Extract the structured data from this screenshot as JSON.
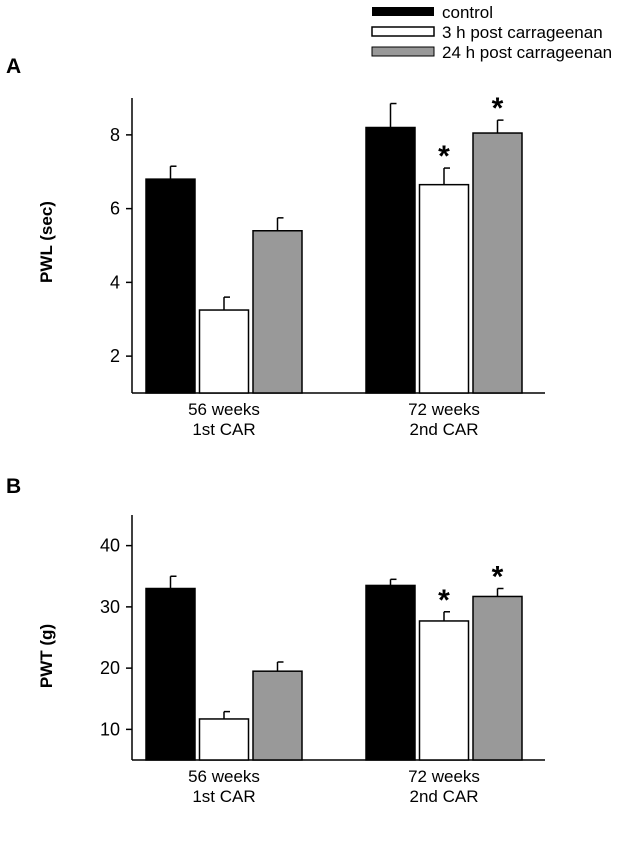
{
  "legend": [
    {
      "label": "control",
      "color": "#000000"
    },
    {
      "label": "3 h post carrageenan",
      "color": "#ffffff"
    },
    {
      "label": "24 h post carrageenan",
      "color": "#999999"
    }
  ],
  "chart_data": [
    {
      "panel": "A",
      "type": "bar",
      "ylabel": "PWL (sec)",
      "ylim": [
        1,
        9
      ],
      "yticks": [
        2,
        4,
        6,
        8
      ],
      "categories": [
        [
          "56 weeks",
          "1st CAR"
        ],
        [
          "72 weeks",
          "2nd CAR"
        ]
      ],
      "series": [
        {
          "name": "control",
          "values": [
            6.8,
            8.2
          ],
          "errors": [
            0.35,
            0.65
          ],
          "significant": [
            false,
            false
          ]
        },
        {
          "name": "3 h post carrageenan",
          "values": [
            3.25,
            6.65
          ],
          "errors": [
            0.35,
            0.45
          ],
          "significant": [
            false,
            true
          ]
        },
        {
          "name": "24 h post carrageenan",
          "values": [
            5.4,
            8.05
          ],
          "errors": [
            0.35,
            0.35
          ],
          "significant": [
            false,
            true
          ]
        }
      ],
      "marker": "*"
    },
    {
      "panel": "B",
      "type": "bar",
      "ylabel": "PWT (g)",
      "ylim": [
        5,
        45
      ],
      "yticks": [
        10,
        20,
        30,
        40
      ],
      "categories": [
        [
          "56 weeks",
          "1st CAR"
        ],
        [
          "72 weeks",
          "2nd CAR"
        ]
      ],
      "series": [
        {
          "name": "control",
          "values": [
            33,
            33.5
          ],
          "errors": [
            2,
            1
          ]
        },
        {
          "name": "3 h post carrageenan",
          "values": [
            11.7,
            27.7
          ],
          "errors": [
            1.2,
            1.5
          ],
          "significant": [
            false,
            true
          ]
        },
        {
          "name": "24 h post carrageenan",
          "values": [
            19.5,
            31.7
          ],
          "errors": [
            1.5,
            1.3
          ],
          "significant": [
            false,
            true
          ]
        }
      ],
      "marker": "*"
    }
  ]
}
